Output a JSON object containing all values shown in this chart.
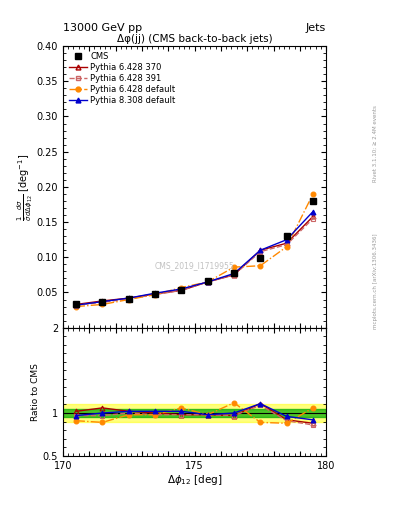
{
  "title_top": "13000 GeV pp",
  "title_right": "Jets",
  "plot_title": "Δφ(jj) (CMS back-to-back jets)",
  "ylabel_main": "$\\frac{1}{\\bar{\\sigma}}\\frac{d\\sigma}{d\\Delta\\phi_{12}}$ [deg$^{-1}$]",
  "ylabel_ratio": "Ratio to CMS",
  "xlabel": "$\\Delta\\phi_{12}$ [deg]",
  "right_label": "mcplots.cern.ch [arXiv:1306.3436]",
  "right_label2": "Rivet 3.1.10; ≥ 2.4M events",
  "watermark": "CMS_2019_I1719955",
  "xlim": [
    170,
    180
  ],
  "ylim_main": [
    0.0,
    0.4
  ],
  "ylim_ratio": [
    0.5,
    2.0
  ],
  "yticks_main": [
    0.05,
    0.1,
    0.15,
    0.2,
    0.25,
    0.3,
    0.35,
    0.4
  ],
  "yticks_ratio": [
    0.5,
    1.0,
    2.0
  ],
  "x_data": [
    170.5,
    171.5,
    172.5,
    173.5,
    174.5,
    175.5,
    176.5,
    177.5,
    178.5,
    179.5
  ],
  "cms_y": [
    0.033,
    0.037,
    0.041,
    0.048,
    0.054,
    0.066,
    0.077,
    0.099,
    0.13,
    0.18
  ],
  "p6_370_y": [
    0.033,
    0.038,
    0.042,
    0.048,
    0.053,
    0.065,
    0.075,
    0.11,
    0.12,
    0.158
  ],
  "p6_391_y": [
    0.032,
    0.036,
    0.041,
    0.047,
    0.053,
    0.065,
    0.075,
    0.108,
    0.118,
    0.155
  ],
  "p6_def_y": [
    0.03,
    0.033,
    0.04,
    0.047,
    0.057,
    0.065,
    0.086,
    0.088,
    0.115,
    0.19
  ],
  "p8_308_y": [
    0.032,
    0.037,
    0.042,
    0.049,
    0.055,
    0.065,
    0.077,
    0.11,
    0.125,
    0.165
  ],
  "ratio_p6_370": [
    1.02,
    1.06,
    1.02,
    1.0,
    0.98,
    0.98,
    0.97,
    1.11,
    0.92,
    0.88
  ],
  "ratio_p6_391": [
    0.97,
    0.97,
    1.0,
    0.98,
    0.98,
    0.98,
    0.97,
    1.09,
    0.91,
    0.86
  ],
  "ratio_p6_def": [
    0.91,
    0.89,
    0.98,
    0.98,
    1.06,
    0.98,
    1.12,
    0.89,
    0.88,
    1.06
  ],
  "ratio_p8_308": [
    0.97,
    1.0,
    1.02,
    1.02,
    1.02,
    0.98,
    1.0,
    1.11,
    0.96,
    0.92
  ],
  "color_cms": "#000000",
  "color_p6_370": "#aa0000",
  "color_p6_391": "#cc6666",
  "color_p6_def": "#ff8800",
  "color_p8_308": "#0000cc",
  "band_yellow": "#ffff00",
  "band_green": "#00aa00",
  "band_yellow_alpha": 0.5,
  "band_green_alpha": 0.7
}
